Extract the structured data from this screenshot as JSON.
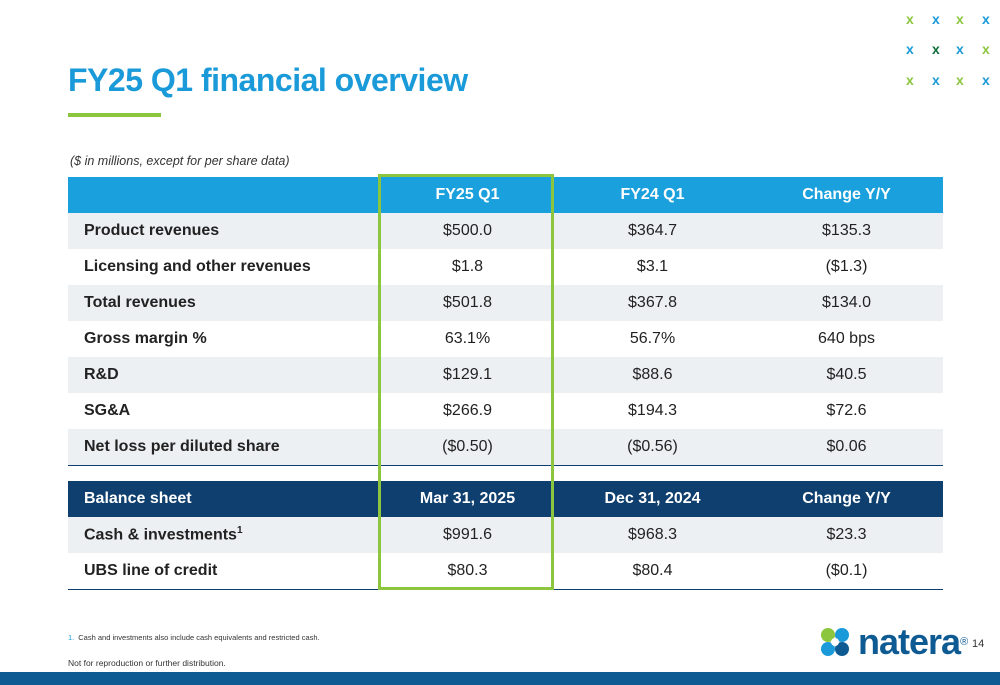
{
  "title": "FY25 Q1 financial overview",
  "subtitle": "($ in millions, except for per share data)",
  "colors": {
    "title_blue": "#1a9ad8",
    "accent_green": "#8cc63f",
    "header_blue": "#1aa0dc",
    "header_navy": "#0e3f6e",
    "row_shade": "#edf0f3"
  },
  "income_table": {
    "headers": [
      "",
      "FY25 Q1",
      "FY24 Q1",
      "Change Y/Y"
    ],
    "rows": [
      {
        "label": "Product revenues",
        "fy25": "$500.0",
        "fy24": "$364.7",
        "change": "$135.3"
      },
      {
        "label": "Licensing and other revenues",
        "fy25": "$1.8",
        "fy24": "$3.1",
        "change": "($1.3)"
      },
      {
        "label": "Total revenues",
        "fy25": "$501.8",
        "fy24": "$367.8",
        "change": "$134.0"
      },
      {
        "label": "Gross margin %",
        "fy25": "63.1%",
        "fy24": "56.7%",
        "change": "640 bps"
      },
      {
        "label": "R&D",
        "fy25": "$129.1",
        "fy24": "$88.6",
        "change": "$40.5"
      },
      {
        "label": "SG&A",
        "fy25": "$266.9",
        "fy24": "$194.3",
        "change": "$72.6"
      },
      {
        "label": "Net loss per diluted share",
        "fy25": "($0.50)",
        "fy24": "($0.56)",
        "change": "$0.06"
      }
    ]
  },
  "balance_table": {
    "headers": [
      "Balance sheet",
      "Mar 31, 2025",
      "Dec 31, 2024",
      "Change Y/Y"
    ],
    "rows": [
      {
        "label": "Cash & investments",
        "superscript": "1",
        "mar": "$991.6",
        "dec": "$968.3",
        "change": "$23.3"
      },
      {
        "label": "UBS line of credit",
        "superscript": "",
        "mar": "$80.3",
        "dec": "$80.4",
        "change": "($0.1)"
      }
    ]
  },
  "footnote": {
    "number": "1.",
    "text": "Cash and investments also include cash equivalents and restricted cash."
  },
  "disclaimer": "Not for reproduction or further distribution.",
  "logo": {
    "text": "natera",
    "reg": "®"
  },
  "page_number": "14",
  "decor_x_glyph": "x"
}
